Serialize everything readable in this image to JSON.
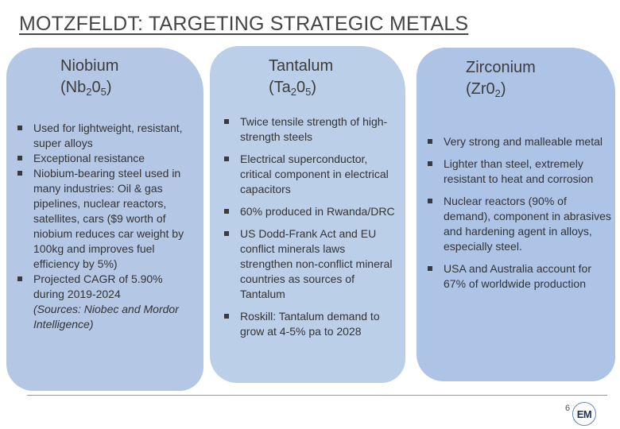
{
  "slide": {
    "title": "MOTZFELDT: TARGETING STRATEGIC METALS",
    "page_number": "6",
    "logo_text": "EM",
    "colors": {
      "card_blue": "#b4c8e6",
      "rule_blue": "#7d9bc6"
    }
  },
  "columns": [
    {
      "name": "Niobium",
      "formula": {
        "pre": "(Nb",
        "sub1": "2",
        "mid": "0",
        "sub2": "5",
        "post": ")"
      },
      "bullets": [
        "Used for lightweight, resistant, super alloys",
        "Exceptional resistance",
        "Niobium-bearing steel used in many industries: Oil & gas pipelines, nuclear reactors, satellites, cars ($9 worth of niobium reduces car weight by 100kg and improves fuel efficiency by 5%)",
        "Projected CAGR of 5.90% during 2019-2024"
      ],
      "source": "(Sources: Niobec and Mordor Intelligence)"
    },
    {
      "name": "Tantalum",
      "formula": {
        "pre": "(Ta",
        "sub1": "2",
        "mid": "0",
        "sub2": "5",
        "post": ")"
      },
      "bullets": [
        "Twice tensile strength of high-strength steels",
        "Electrical superconductor, critical component in electrical capacitors",
        "60% produced in Rwanda/DRC",
        "US Dodd-Frank Act and EU conflict minerals laws strengthen non-conflict mineral countries as sources of Tantalum",
        "Roskill: Tantalum demand to grow at 4-5% pa to 2028"
      ]
    },
    {
      "name": "Zirconium",
      "formula": {
        "pre": "(Zr0",
        "sub1": "2",
        "post": ")"
      },
      "bullets": [
        "Very strong and malleable metal",
        "Lighter than steel, extremely resistant to heat and corrosion",
        "Nuclear reactors (90% of demand), component in abrasives and hardening agent in alloys, especially steel.",
        "USA and Australia account for 67% of worldwide production"
      ]
    }
  ]
}
